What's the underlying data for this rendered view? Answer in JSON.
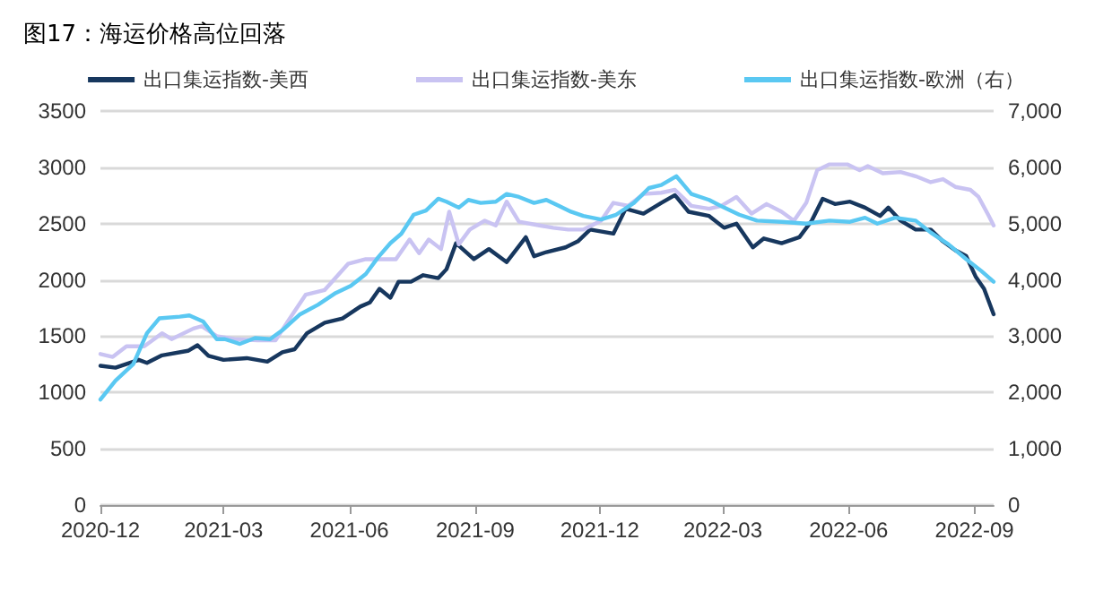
{
  "chart_data": {
    "type": "line",
    "title": "图17：海运价格高位回落",
    "legend": "top",
    "grid": "y",
    "marker": "none",
    "line_style": "solid",
    "xlim": [
      "2020-12-01",
      "2022-09-15"
    ],
    "xticks": [
      "2020-12",
      "2021-03",
      "2021-06",
      "2021-09",
      "2021-12",
      "2022-03",
      "2022-06",
      "2022-09"
    ],
    "ylim": [
      0,
      3500
    ],
    "yticks": [
      0,
      500,
      1000,
      1500,
      2000,
      2500,
      3000,
      3500
    ],
    "y2lim": [
      0,
      7000
    ],
    "y2ticks": [
      0,
      {
        "value": 1000,
        "label": "1,000"
      },
      {
        "value": 2000,
        "label": "2,000"
      },
      {
        "value": 3000,
        "label": "3,000"
      },
      {
        "value": 4000,
        "label": "4,000"
      },
      {
        "value": 5000,
        "label": "5,000"
      },
      {
        "value": 6000,
        "label": "6,000"
      },
      {
        "value": 7000,
        "label": "7,000"
      }
    ],
    "series": [
      {
        "name": "出口集运指数-美西",
        "color": "#17375e",
        "x": [
          "2020-12-01",
          "2020-12-12",
          "2020-12-29",
          "2021-01-04",
          "2021-01-15",
          "2021-02-03",
          "2021-02-10",
          "2021-02-18",
          "2021-03-01",
          "2021-03-18",
          "2021-04-02",
          "2021-04-13",
          "2021-04-22",
          "2021-05-01",
          "2021-05-14",
          "2021-05-27",
          "2021-06-09",
          "2021-06-16",
          "2021-06-23",
          "2021-07-01",
          "2021-07-07",
          "2021-07-16",
          "2021-07-25",
          "2021-08-05",
          "2021-08-11",
          "2021-08-18",
          "2021-08-31",
          "2021-09-11",
          "2021-09-24",
          "2021-10-08",
          "2021-10-14",
          "2021-10-23",
          "2021-11-06",
          "2021-11-15",
          "2021-11-24",
          "2021-12-11",
          "2021-12-20",
          "2022-01-02",
          "2022-01-15",
          "2022-01-25",
          "2022-02-04",
          "2022-02-19",
          "2022-03-02",
          "2022-03-11",
          "2022-03-23",
          "2022-03-31",
          "2022-04-13",
          "2022-04-26",
          "2022-05-05",
          "2022-05-13",
          "2022-05-22",
          "2022-06-02",
          "2022-06-13",
          "2022-06-24",
          "2022-06-30",
          "2022-07-09",
          "2022-07-20",
          "2022-07-31",
          "2022-08-09",
          "2022-08-18",
          "2022-08-26",
          "2022-09-02",
          "2022-09-08",
          "2022-09-15"
        ],
        "values": [
          1237,
          1220,
          1290,
          1263,
          1330,
          1370,
          1420,
          1326,
          1290,
          1305,
          1274,
          1358,
          1384,
          1526,
          1620,
          1658,
          1763,
          1800,
          1921,
          1842,
          1984,
          1984,
          2042,
          2016,
          2095,
          2326,
          2184,
          2274,
          2158,
          2379,
          2210,
          2247,
          2289,
          2342,
          2447,
          2411,
          2632,
          2589,
          2684,
          2753,
          2605,
          2568,
          2463,
          2500,
          2289,
          2368,
          2326,
          2379,
          2526,
          2721,
          2674,
          2695,
          2642,
          2568,
          2642,
          2526,
          2447,
          2447,
          2342,
          2263,
          2211,
          2026,
          1921,
          1695
        ]
      },
      {
        "name": "出口集运指数-美东",
        "color": "#c9c3f2",
        "x": [
          "2020-12-01",
          "2020-12-10",
          "2020-12-20",
          "2021-01-02",
          "2021-01-15",
          "2021-01-22",
          "2021-02-07",
          "2021-02-13",
          "2021-02-24",
          "2021-03-09",
          "2021-03-26",
          "2021-04-08",
          "2021-04-17",
          "2021-04-30",
          "2021-05-14",
          "2021-05-31",
          "2021-06-13",
          "2021-06-26",
          "2021-07-05",
          "2021-07-15",
          "2021-07-22",
          "2021-07-29",
          "2021-08-07",
          "2021-08-13",
          "2021-08-20",
          "2021-08-28",
          "2021-09-08",
          "2021-09-16",
          "2021-09-24",
          "2021-10-03",
          "2021-10-18",
          "2021-10-28",
          "2021-11-08",
          "2021-11-19",
          "2021-12-02",
          "2021-12-11",
          "2021-12-22",
          "2022-01-02",
          "2022-01-15",
          "2022-01-25",
          "2022-02-06",
          "2022-02-19",
          "2022-02-28",
          "2022-03-11",
          "2022-03-22",
          "2022-04-02",
          "2022-04-13",
          "2022-04-22",
          "2022-05-01",
          "2022-05-09",
          "2022-05-18",
          "2022-05-31",
          "2022-06-09",
          "2022-06-15",
          "2022-06-26",
          "2022-07-09",
          "2022-07-20",
          "2022-07-31",
          "2022-08-09",
          "2022-08-18",
          "2022-08-29",
          "2022-09-04",
          "2022-09-11",
          "2022-09-15"
        ],
        "values": [
          1342,
          1316,
          1410,
          1410,
          1526,
          1474,
          1568,
          1589,
          1500,
          1474,
          1463,
          1463,
          1632,
          1868,
          1911,
          2142,
          2184,
          2184,
          2184,
          2358,
          2237,
          2358,
          2274,
          2605,
          2316,
          2447,
          2526,
          2484,
          2695,
          2516,
          2484,
          2463,
          2447,
          2447,
          2526,
          2684,
          2658,
          2763,
          2774,
          2800,
          2658,
          2632,
          2658,
          2737,
          2589,
          2674,
          2605,
          2526,
          2684,
          2974,
          3026,
          3026,
          2974,
          3011,
          2947,
          2958,
          2921,
          2868,
          2895,
          2826,
          2800,
          2737,
          2579,
          2484
        ]
      },
      {
        "name": "出口集运指数-欧洲（右）",
        "color": "#5ac8f2",
        "axis": "y2",
        "x": [
          "2020-12-01",
          "2020-12-12",
          "2020-12-25",
          "2021-01-04",
          "2021-01-13",
          "2021-01-28",
          "2021-02-04",
          "2021-02-14",
          "2021-02-24",
          "2021-03-02",
          "2021-03-13",
          "2021-03-24",
          "2021-04-04",
          "2021-04-13",
          "2021-04-26",
          "2021-05-09",
          "2021-05-22",
          "2021-06-02",
          "2021-06-13",
          "2021-06-22",
          "2021-07-01",
          "2021-07-09",
          "2021-07-18",
          "2021-07-27",
          "2021-08-05",
          "2021-08-11",
          "2021-08-20",
          "2021-08-27",
          "2021-09-05",
          "2021-09-16",
          "2021-09-24",
          "2021-10-03",
          "2021-10-14",
          "2021-10-23",
          "2021-11-01",
          "2021-11-10",
          "2021-11-19",
          "2021-12-02",
          "2021-12-13",
          "2021-12-26",
          "2022-01-06",
          "2022-01-15",
          "2022-01-26",
          "2022-02-06",
          "2022-02-19",
          "2022-03-02",
          "2022-03-13",
          "2022-03-26",
          "2022-04-13",
          "2022-05-01",
          "2022-05-18",
          "2022-06-02",
          "2022-06-13",
          "2022-06-22",
          "2022-07-05",
          "2022-07-20",
          "2022-07-31",
          "2022-08-13",
          "2022-08-26",
          "2022-09-06",
          "2022-09-15"
        ],
        "values": [
          1874,
          2211,
          2505,
          3053,
          3316,
          3347,
          3368,
          3263,
          2947,
          2947,
          2863,
          2968,
          2947,
          3105,
          3389,
          3558,
          3768,
          3895,
          4105,
          4400,
          4653,
          4821,
          5158,
          5232,
          5442,
          5389,
          5284,
          5421,
          5368,
          5389,
          5526,
          5474,
          5368,
          5421,
          5316,
          5211,
          5137,
          5074,
          5158,
          5368,
          5632,
          5684,
          5842,
          5526,
          5421,
          5284,
          5158,
          5053,
          5032,
          5000,
          5053,
          5032,
          5105,
          5000,
          5105,
          5053,
          4842,
          4632,
          4368,
          4158,
          3968
        ]
      }
    ]
  }
}
